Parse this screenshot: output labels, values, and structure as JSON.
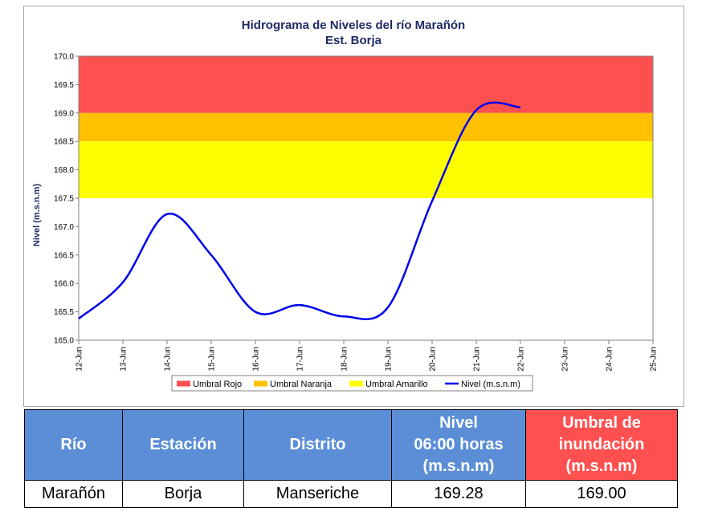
{
  "chart_data": {
    "type": "line",
    "title": "Hidrograma de Niveles del río Marañón",
    "subtitle": "Est. Borja",
    "ylabel": "Nivel (m.s.n.m)",
    "xlabel": "",
    "ylim": [
      165.0,
      170.0
    ],
    "y_ticks": [
      "165.0",
      "165.5",
      "166.0",
      "166.5",
      "167.0",
      "167.5",
      "168.0",
      "168.5",
      "169.0",
      "169.5",
      "170.0"
    ],
    "categories": [
      "12-Jun",
      "13-Jun",
      "14-Jun",
      "15-Jun",
      "16-Jun",
      "17-Jun",
      "18-Jun",
      "19-Jun",
      "20-Jun",
      "21-Jun",
      "22-Jun",
      "23-Jun",
      "24-Jun",
      "25-Jun"
    ],
    "bands": [
      {
        "name": "Umbral Rojo",
        "from": 169.0,
        "to": 170.0,
        "color": "#ff5050"
      },
      {
        "name": "Umbral Naranja",
        "from": 168.5,
        "to": 169.0,
        "color": "#ffc000"
      },
      {
        "name": "Umbral Amarillo",
        "from": 167.5,
        "to": 168.5,
        "color": "#ffff00"
      }
    ],
    "series": [
      {
        "name": "Nivel (m.s.n.m)",
        "color": "#0000ee",
        "x": [
          0,
          1,
          2,
          3,
          4,
          5,
          6,
          7,
          8,
          9,
          10
        ],
        "values": [
          165.38,
          166.02,
          167.22,
          166.5,
          165.5,
          165.62,
          165.42,
          165.58,
          167.45,
          169.05,
          169.1
        ]
      }
    ],
    "legend_position": "bottom",
    "grid": false
  },
  "table": {
    "headers": [
      {
        "lines": [
          "Río"
        ],
        "color": "#5b8ed6"
      },
      {
        "lines": [
          "Estación"
        ],
        "color": "#5b8ed6"
      },
      {
        "lines": [
          "Distrito"
        ],
        "color": "#5b8ed6"
      },
      {
        "lines": [
          "Nivel",
          "06:00 horas",
          "(m.s.n.m)"
        ],
        "color": "#5b8ed6"
      },
      {
        "lines": [
          "Umbral de",
          "inundación",
          "(m.s.n.m)"
        ],
        "color": "#ff5050"
      }
    ],
    "row": [
      "Marañón",
      "Borja",
      "Manseriche",
      "169.28",
      "169.00"
    ]
  }
}
